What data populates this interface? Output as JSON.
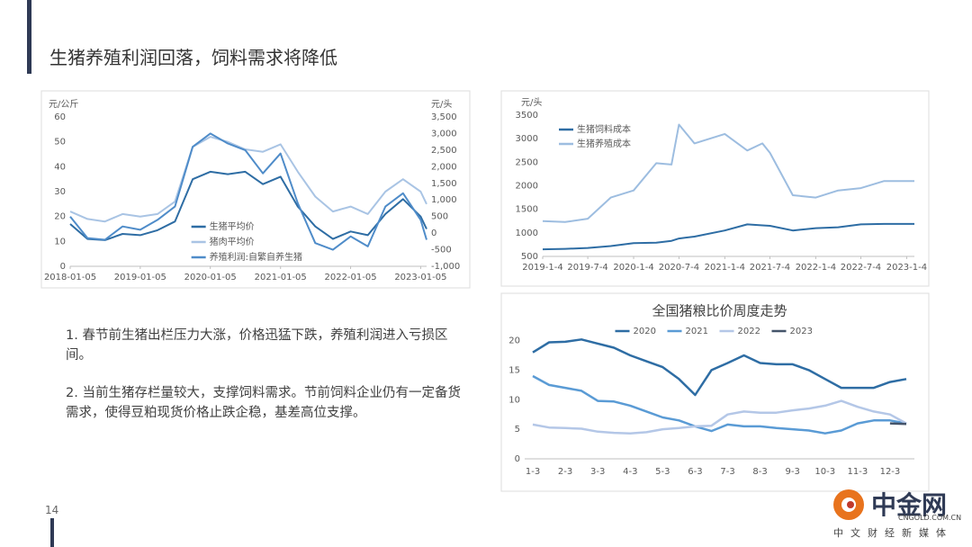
{
  "title": "生猪养殖利润回落，饲料需求将降低",
  "bullets": [
    "1. 春节前生猪出栏压力大涨，价格迅猛下跌，养殖利润进入亏损区间。",
    "2. 当前生猪存栏量较大，支撑饲料需求。节前饲料企业仍有一定备货需求，使得豆粕现货价格止跌企稳，基差高位支撑。"
  ],
  "page_number": "14",
  "logo": {
    "name": "中金网",
    "domain": "CNGOLD.COM.CN",
    "slogan": "中文财经新媒体"
  },
  "chart_data": [
    {
      "type": "line",
      "ylabel": "元/公斤",
      "y2label": "元/头",
      "grid": false,
      "legend": "inside-bottom",
      "x": [
        "2018-01-05",
        "2018-04-05",
        "2018-07-05",
        "2018-10-05",
        "2019-01-05",
        "2019-04-05",
        "2019-07-05",
        "2019-10-05",
        "2020-01-05",
        "2020-04-05",
        "2020-07-05",
        "2020-10-05",
        "2021-01-05",
        "2021-04-05",
        "2021-07-05",
        "2021-10-05",
        "2022-01-05",
        "2022-04-05",
        "2022-07-05",
        "2022-10-05",
        "2023-01-05",
        "2023-02-05"
      ],
      "xticks": [
        "2018-01-05",
        "2019-01-05",
        "2020-01-05",
        "2021-01-05",
        "2022-01-05",
        "2023-01-05"
      ],
      "ylim": [
        0,
        60
      ],
      "yticks": [
        0,
        10,
        20,
        30,
        40,
        50,
        60
      ],
      "y2lim": [
        -1000,
        3500
      ],
      "y2ticks": [
        {
          "value": -1000,
          "label": "-1,000"
        },
        -500,
        0,
        500,
        {
          "value": 1000,
          "label": "1,000"
        },
        {
          "value": 1500,
          "label": "1,500"
        },
        {
          "value": 2000,
          "label": "2,000"
        },
        {
          "value": 2500,
          "label": "2,500"
        },
        {
          "value": 3000,
          "label": "3,000"
        },
        {
          "value": 3500,
          "label": "3,500"
        }
      ],
      "series": [
        {
          "name": "生猪平均价",
          "color": "#2e6da4",
          "values": [
            17,
            11,
            10.5,
            13,
            12.5,
            14.5,
            18,
            35,
            38,
            37,
            38,
            33,
            36,
            24,
            16,
            11,
            14,
            12.5,
            21,
            27,
            20,
            15
          ]
        },
        {
          "name": "猪肉平均价",
          "color": "#a9c4e4",
          "values": [
            22,
            19,
            18,
            21,
            20,
            21,
            26,
            48,
            52,
            50,
            47,
            46,
            49,
            38,
            28,
            22,
            24,
            21,
            30,
            35,
            30,
            25
          ]
        },
        {
          "name": "养殖利润:自繁自养生猪",
          "color": "#4f8cc9",
          "axis": "y2",
          "values": [
            500,
            -150,
            -200,
            200,
            100,
            400,
            800,
            2600,
            3000,
            2700,
            2500,
            1800,
            2400,
            900,
            -300,
            -500,
            -100,
            -400,
            800,
            1200,
            400,
            -200
          ]
        }
      ]
    },
    {
      "type": "line",
      "ylabel": "元/头",
      "grid": false,
      "legend": "top-left",
      "x": [
        "2019-1-4",
        "2019-4-4",
        "2019-7-4",
        "2019-10-4",
        "2020-1-4",
        "2020-4-4",
        "2020-6-4",
        "2020-7-4",
        "2020-9-4",
        "2021-1-4",
        "2021-4-4",
        "2021-6-4",
        "2021-7-4",
        "2021-10-4",
        "2022-1-4",
        "2022-4-4",
        "2022-7-4",
        "2022-10-4",
        "2023-1-4",
        "2023-2-4"
      ],
      "xticks": [
        "2019-1-4",
        "2019-7-4",
        "2020-1-4",
        "2020-7-4",
        "2021-1-4",
        "2021-7-4",
        "2022-1-4",
        "2022-7-4",
        "2023-1-4"
      ],
      "ylim": [
        500,
        3500
      ],
      "yticks": [
        500,
        1000,
        1500,
        2000,
        2500,
        3000,
        3500
      ],
      "series": [
        {
          "name": "生猪饲料成本",
          "color": "#2e6da4",
          "values": [
            650,
            660,
            680,
            720,
            780,
            790,
            830,
            880,
            920,
            1050,
            1180,
            1160,
            1150,
            1050,
            1100,
            1120,
            1180,
            1190,
            1190,
            1190
          ]
        },
        {
          "name": "生猪养殖成本",
          "color": "#9dbde0",
          "values": [
            1250,
            1230,
            1300,
            1750,
            1900,
            2480,
            2450,
            3300,
            2900,
            3100,
            2750,
            2900,
            2700,
            1800,
            1750,
            1900,
            1950,
            2100,
            2100,
            2100
          ]
        }
      ]
    },
    {
      "type": "line",
      "title": "全国猪粮比价周度走势",
      "grid": false,
      "legend": "top",
      "categories": [
        "1-3",
        null,
        "2-3",
        null,
        "3-3",
        null,
        "4-3",
        null,
        "5-3",
        null,
        "6-3",
        null,
        "7-3",
        null,
        "8-3",
        null,
        "9-3",
        null,
        "10-3",
        null,
        "11-3",
        null,
        "12-3",
        null
      ],
      "ylim": [
        0,
        21
      ],
      "yticks": [
        0,
        5,
        10,
        15,
        20
      ],
      "series": [
        {
          "name": "2020",
          "color": "#2e6da4",
          "values": [
            18,
            19.7,
            19.8,
            20.2,
            19.5,
            18.8,
            17.5,
            16.5,
            15.5,
            13.5,
            10.8,
            15,
            16.2,
            17.5,
            16.2,
            16,
            16,
            15,
            13.5,
            12,
            12,
            12,
            13,
            13.5
          ]
        },
        {
          "name": "2021",
          "color": "#5a9bd5",
          "values": [
            14,
            12.5,
            12,
            11.5,
            9.8,
            9.7,
            9,
            8,
            7,
            6.5,
            5.5,
            4.7,
            5.8,
            5.5,
            5.5,
            5.2,
            5,
            4.8,
            4.3,
            4.8,
            6,
            6.5,
            6.5,
            6
          ]
        },
        {
          "name": "2022",
          "color": "#b4c7e7",
          "values": [
            5.8,
            5.3,
            5.2,
            5.1,
            4.6,
            4.4,
            4.3,
            4.5,
            5,
            5.2,
            5.5,
            5.6,
            7.5,
            8,
            7.8,
            7.8,
            8.2,
            8.5,
            9,
            9.8,
            8.8,
            8,
            7.5,
            6
          ]
        },
        {
          "name": "2023",
          "color": "#44546a",
          "values": [
            null,
            null,
            null,
            null,
            null,
            null,
            null,
            null,
            null,
            null,
            null,
            null,
            null,
            null,
            null,
            null,
            null,
            null,
            null,
            null,
            null,
            null,
            6,
            5.9
          ]
        }
      ]
    }
  ]
}
